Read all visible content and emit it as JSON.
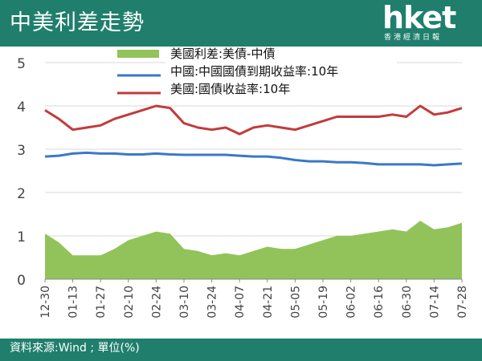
{
  "header": {
    "title": "中美利差走勢",
    "logo_text": "hket",
    "logo_subtext": "香港經濟日報"
  },
  "footer": {
    "source": "資料來源:Wind ; 單位(%)"
  },
  "colors": {
    "header_bg": "#1f7f6c",
    "spread": "#92c35a",
    "china": "#3a78c9",
    "us": "#c23b3b"
  },
  "chart_data": {
    "type": "line",
    "title": "",
    "xlabel": "",
    "ylabel": "",
    "ylim": [
      0,
      5
    ],
    "yticks": [
      "0",
      "1",
      "2",
      "3",
      "4",
      "5"
    ],
    "x": [
      "12-30",
      "01-06",
      "01-13",
      "01-20",
      "01-27",
      "02-03",
      "02-10",
      "02-17",
      "02-24",
      "03-03",
      "03-10",
      "03-17",
      "03-24",
      "03-31",
      "04-07",
      "04-14",
      "04-21",
      "04-28",
      "05-05",
      "05-12",
      "05-19",
      "05-26",
      "06-02",
      "06-09",
      "06-16",
      "06-23",
      "06-30",
      "07-07",
      "07-14",
      "07-21",
      "07-28"
    ],
    "xticks": [
      "12-30",
      "01-13",
      "01-27",
      "02-10",
      "02-24",
      "03-10",
      "03-24",
      "04-07",
      "04-21",
      "05-05",
      "05-19",
      "06-02",
      "06-16",
      "06-30",
      "07-14",
      "07-28"
    ],
    "grid": true,
    "legend_position": "top",
    "series": [
      {
        "name": "美國利差:美債-中債",
        "type": "area",
        "color": "#92c35a",
        "values": [
          1.05,
          0.85,
          0.55,
          0.55,
          0.55,
          0.7,
          0.9,
          1.0,
          1.1,
          1.05,
          0.7,
          0.65,
          0.55,
          0.6,
          0.55,
          0.65,
          0.75,
          0.7,
          0.7,
          0.8,
          0.9,
          1.0,
          1.0,
          1.05,
          1.1,
          1.15,
          1.1,
          1.35,
          1.15,
          1.2,
          1.3
        ]
      },
      {
        "name": "中國:中國國債到期收益率:10年",
        "type": "line",
        "color": "#3a78c9",
        "values": [
          2.83,
          2.85,
          2.9,
          2.92,
          2.9,
          2.9,
          2.88,
          2.88,
          2.9,
          2.88,
          2.87,
          2.87,
          2.87,
          2.87,
          2.85,
          2.83,
          2.83,
          2.8,
          2.75,
          2.72,
          2.72,
          2.7,
          2.7,
          2.68,
          2.65,
          2.65,
          2.65,
          2.65,
          2.63,
          2.65,
          2.67
        ]
      },
      {
        "name": "美國:國債收益率:10年",
        "type": "line",
        "color": "#c23b3b",
        "values": [
          3.9,
          3.7,
          3.45,
          3.5,
          3.55,
          3.7,
          3.8,
          3.9,
          4.0,
          3.95,
          3.6,
          3.5,
          3.45,
          3.5,
          3.35,
          3.5,
          3.55,
          3.5,
          3.45,
          3.55,
          3.65,
          3.75,
          3.75,
          3.75,
          3.75,
          3.8,
          3.75,
          4.0,
          3.8,
          3.85,
          3.95
        ]
      }
    ]
  }
}
